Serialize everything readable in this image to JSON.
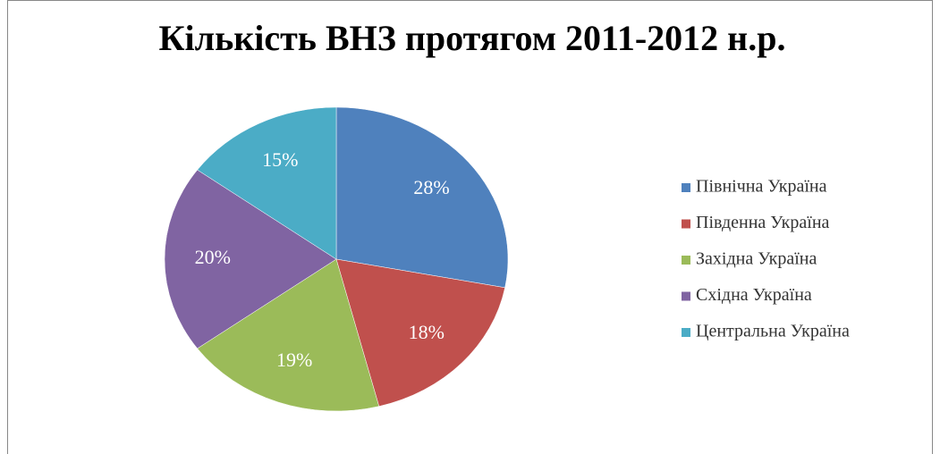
{
  "chart_data": {
    "type": "pie",
    "title": "Кількість ВНЗ протягом 2011-2012 н.р.",
    "categories": [
      "Північна Україна",
      "Південна Україна",
      "Західна Україна",
      "Східна Україна",
      "Центральна Україна"
    ],
    "values": [
      28,
      18,
      19,
      20,
      15
    ],
    "value_labels": [
      "28%",
      "18%",
      "19%",
      "20%",
      "15%"
    ],
    "colors": [
      "#4f81bd",
      "#c0504d",
      "#9bbb59",
      "#8064a2",
      "#4bacc6"
    ],
    "legend": "right"
  }
}
